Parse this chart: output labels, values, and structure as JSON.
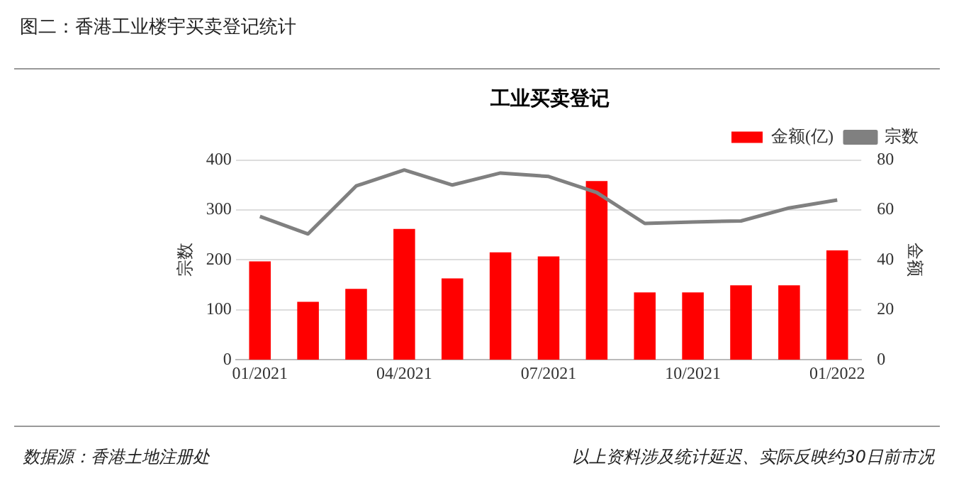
{
  "chart_data": {
    "type": "bar",
    "title": "工业买卖登记",
    "ylabel": "宗数",
    "y2label": "金额",
    "categories": [
      "01/2021",
      null,
      null,
      "04/2021",
      null,
      null,
      "07/2021",
      null,
      null,
      "10/2021",
      null,
      null,
      "01/2022"
    ],
    "series": [
      {
        "name": "金额(亿)",
        "axis": "y2",
        "color": "#ff0000",
        "values": [
          39.4,
          23.2,
          28.4,
          52.4,
          32.6,
          43,
          41.4,
          71.6,
          27,
          27,
          29.8,
          29.8,
          43.8
        ]
      },
      {
        "name": "宗数",
        "type": "line",
        "axis": "y",
        "color": "#808080",
        "values": [
          287,
          252,
          348,
          380,
          350,
          374,
          367,
          335,
          273,
          276,
          278,
          304,
          320
        ]
      }
    ],
    "ylim": [
      0,
      400
    ],
    "yticks": [
      0,
      100,
      200,
      300,
      400
    ],
    "y2lim": [
      0,
      80
    ],
    "y2ticks": [
      0,
      20,
      40,
      60,
      80
    ],
    "grid": "y",
    "legend": "top right",
    "marker": "none",
    "annotations": [
      "图二：香港工业楼宇买卖登记统计",
      "数据源：香港土地注册处",
      "以上资料涉及统计延迟、实际反映约30日前市况"
    ]
  }
}
